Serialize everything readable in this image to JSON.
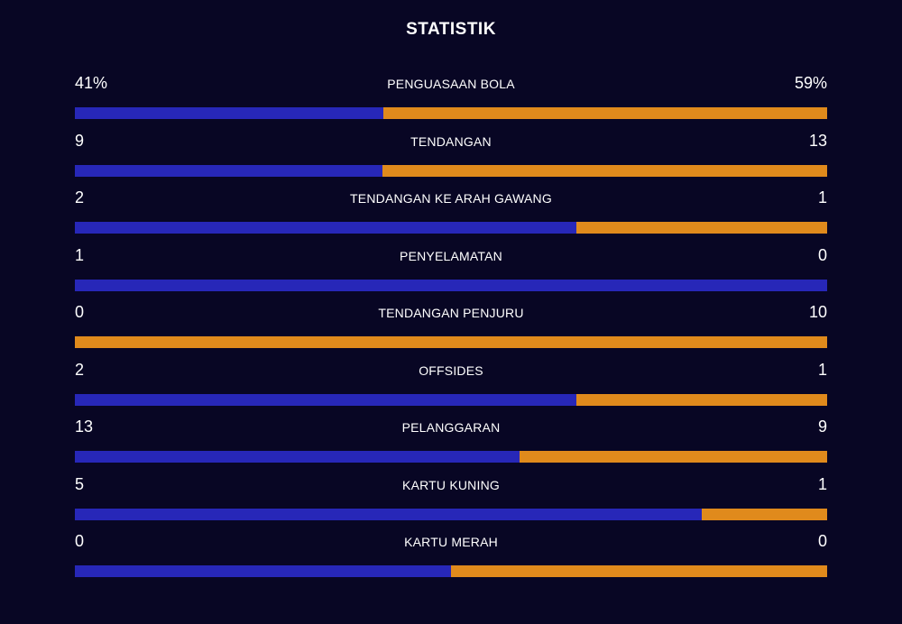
{
  "title": "STATISTIK",
  "colors": {
    "background": "#080624",
    "home": "#2727b8",
    "away": "#e08a1c",
    "text": "#ffffff"
  },
  "stats": [
    {
      "label": "PENGUASAAN BOLA",
      "home_display": "41%",
      "away_display": "59%",
      "home_share": 0.41
    },
    {
      "label": "TENDANGAN",
      "home_display": "9",
      "away_display": "13",
      "home_share": 0.409
    },
    {
      "label": "TENDANGAN KE ARAH GAWANG",
      "home_display": "2",
      "away_display": "1",
      "home_share": 0.667
    },
    {
      "label": "PENYELAMATAN",
      "home_display": "1",
      "away_display": "0",
      "home_share": 1.0
    },
    {
      "label": "TENDANGAN PENJURU",
      "home_display": "0",
      "away_display": "10",
      "home_share": 0.0
    },
    {
      "label": "OFFSIDES",
      "home_display": "2",
      "away_display": "1",
      "home_share": 0.667
    },
    {
      "label": "PELANGGARAN",
      "home_display": "13",
      "away_display": "9",
      "home_share": 0.591
    },
    {
      "label": "KARTU KUNING",
      "home_display": "5",
      "away_display": "1",
      "home_share": 0.833
    },
    {
      "label": "KARTU MERAH",
      "home_display": "0",
      "away_display": "0",
      "home_share": 0.5
    }
  ]
}
